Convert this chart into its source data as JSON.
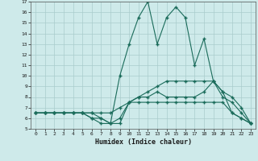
{
  "bg_color": "#ceeaea",
  "grid_color": "#aacccc",
  "line_color": "#1a6b5a",
  "xlabel": "Humidex (Indice chaleur)",
  "xlim": [
    -0.5,
    23.5
  ],
  "ylim": [
    5,
    17
  ],
  "xticks": [
    0,
    1,
    2,
    3,
    4,
    5,
    6,
    7,
    8,
    9,
    10,
    11,
    12,
    13,
    14,
    15,
    16,
    17,
    18,
    19,
    20,
    21,
    22,
    23
  ],
  "yticks": [
    5,
    6,
    7,
    8,
    9,
    10,
    11,
    12,
    13,
    14,
    15,
    16,
    17
  ],
  "series": [
    [
      6.5,
      6.5,
      6.5,
      6.5,
      6.5,
      6.5,
      6.0,
      6.0,
      5.5,
      5.5,
      7.5,
      7.5,
      7.5,
      7.5,
      7.5,
      7.5,
      7.5,
      7.5,
      7.5,
      7.5,
      7.5,
      6.5,
      6.0,
      5.5
    ],
    [
      6.5,
      6.5,
      6.5,
      6.5,
      6.5,
      6.5,
      6.5,
      6.0,
      5.5,
      6.0,
      7.5,
      8.0,
      8.0,
      8.5,
      8.0,
      8.0,
      8.0,
      8.0,
      8.5,
      9.5,
      8.0,
      7.5,
      6.5,
      5.5
    ],
    [
      6.5,
      6.5,
      6.5,
      6.5,
      6.5,
      6.5,
      6.0,
      5.5,
      5.5,
      10.0,
      13.0,
      15.5,
      17.0,
      13.0,
      15.5,
      16.5,
      15.5,
      11.0,
      13.5,
      9.5,
      8.5,
      6.5,
      6.0,
      5.5
    ],
    [
      6.5,
      6.5,
      6.5,
      6.5,
      6.5,
      6.5,
      6.5,
      6.5,
      6.5,
      7.0,
      7.5,
      8.0,
      8.5,
      9.0,
      9.5,
      9.5,
      9.5,
      9.5,
      9.5,
      9.5,
      8.5,
      8.0,
      7.0,
      5.5
    ]
  ]
}
